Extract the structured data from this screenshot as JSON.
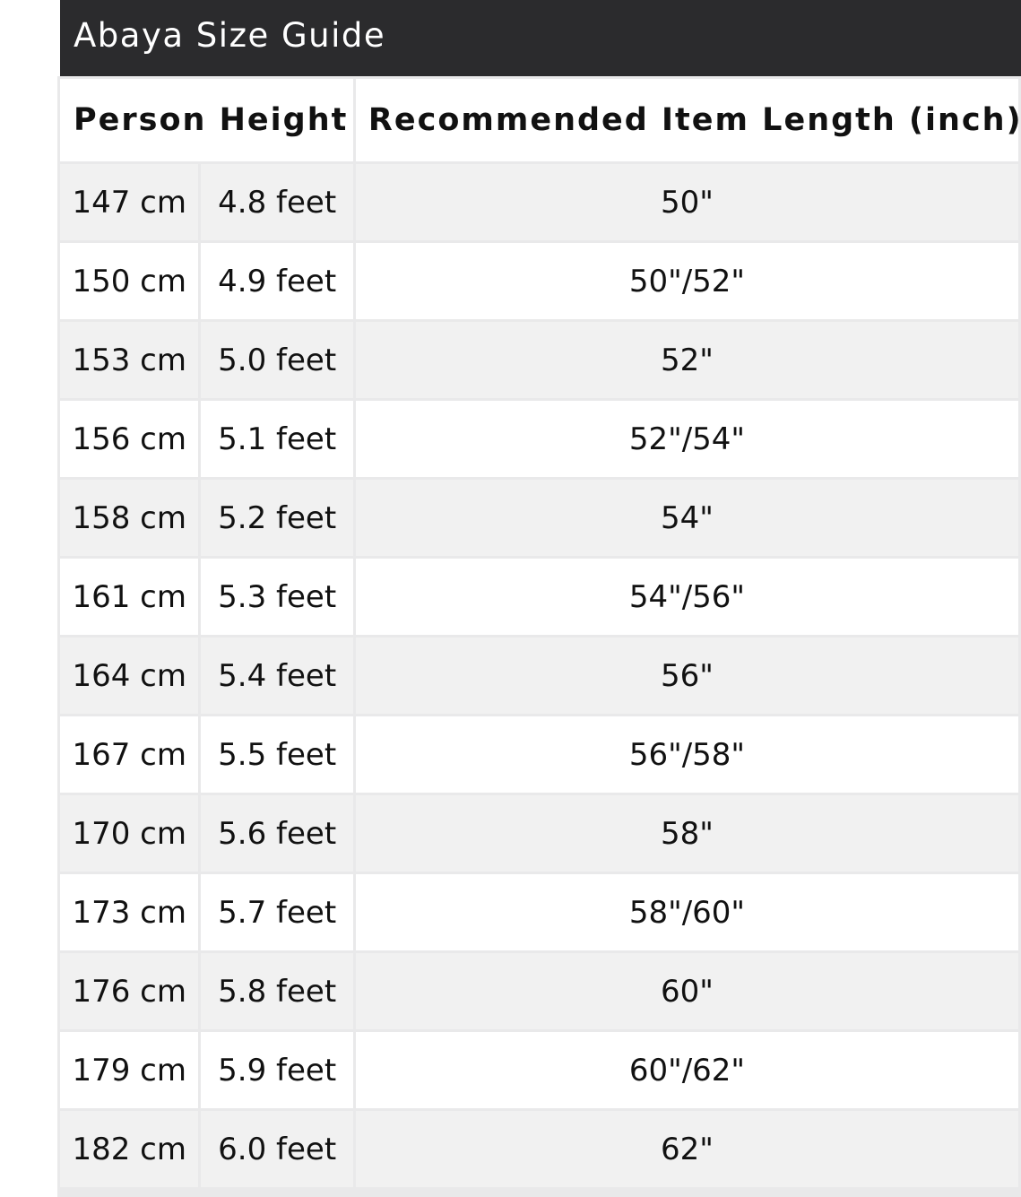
{
  "title": "Abaya Size Guide",
  "headers": {
    "height": "Person Height",
    "length": "Recommended Item Length (inch)"
  },
  "rows": [
    {
      "cm": "147 cm",
      "feet": "4.8 feet",
      "length": "50\""
    },
    {
      "cm": "150 cm",
      "feet": "4.9 feet",
      "length": "50\"/52\""
    },
    {
      "cm": "153 cm",
      "feet": "5.0 feet",
      "length": "52\""
    },
    {
      "cm": "156 cm",
      "feet": "5.1 feet",
      "length": "52\"/54\""
    },
    {
      "cm": "158 cm",
      "feet": "5.2 feet",
      "length": "54\""
    },
    {
      "cm": "161 cm",
      "feet": "5.3 feet",
      "length": "54\"/56\""
    },
    {
      "cm": "164 cm",
      "feet": "5.4 feet",
      "length": "56\""
    },
    {
      "cm": "167 cm",
      "feet": "5.5 feet",
      "length": "56\"/58\""
    },
    {
      "cm": "170 cm",
      "feet": "5.6 feet",
      "length": "58\""
    },
    {
      "cm": "173 cm",
      "feet": "5.7 feet",
      "length": "58\"/60\""
    },
    {
      "cm": "176 cm",
      "feet": "5.8 feet",
      "length": "60\""
    },
    {
      "cm": "179 cm",
      "feet": "5.9 feet",
      "length": "60\"/62\""
    },
    {
      "cm": "182 cm",
      "feet": "6.0 feet",
      "length": "62\""
    }
  ],
  "colors": {
    "title_bg": "#2b2b2d",
    "row_alt": "#f1f1f1",
    "border": "#e9e9ea"
  }
}
